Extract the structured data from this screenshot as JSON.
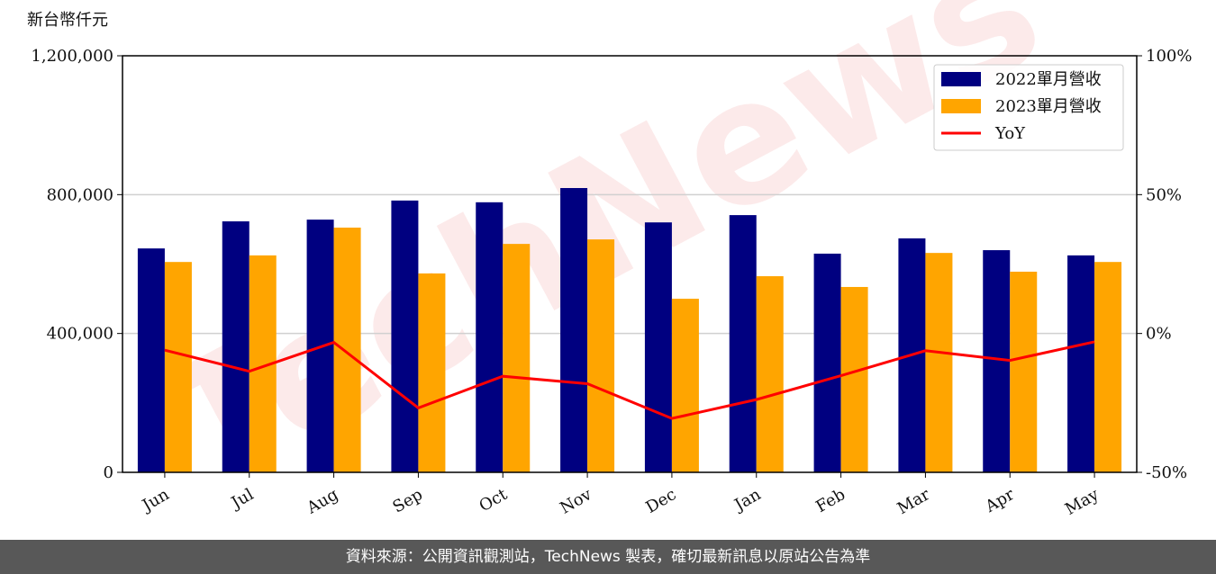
{
  "chart_data": {
    "type": "bar",
    "y_label": "新台幣仟元",
    "watermark": "TechNews",
    "categories": [
      "Jun",
      "Jul",
      "Aug",
      "Sep",
      "Oct",
      "Nov",
      "Dec",
      "Jan",
      "Feb",
      "Mar",
      "Apr",
      "May"
    ],
    "series": [
      {
        "name": "2022單月營收",
        "color": "#000080",
        "values": [
          645000,
          723000,
          728000,
          783000,
          778000,
          819000,
          720000,
          741000,
          630000,
          674000,
          640000,
          625000
        ]
      },
      {
        "name": "2023單月營收",
        "color": "#ffa500",
        "values": [
          606000,
          625000,
          705000,
          573000,
          658000,
          671000,
          500000,
          565000,
          534000,
          632000,
          578000,
          606000
        ]
      },
      {
        "name": "YoY",
        "color": "#ff0000",
        "type": "line",
        "axis": "y2",
        "values": [
          -6.0,
          -13.6,
          -3.2,
          -26.8,
          -15.4,
          -18.1,
          -30.6,
          -23.8,
          -15.2,
          -6.2,
          -9.7,
          -3.0
        ]
      }
    ],
    "ylim": [
      0,
      1200000
    ],
    "yticks": [
      {
        "value": 0,
        "label": "0"
      },
      {
        "value": 400000,
        "label": "400,000"
      },
      {
        "value": 800000,
        "label": "800,000"
      },
      {
        "value": 1200000,
        "label": "1,200,000"
      }
    ],
    "y2lim": [
      -50,
      100
    ],
    "y2ticks": [
      {
        "value": -50,
        "label": "-50%"
      },
      {
        "value": 0,
        "label": "0%"
      },
      {
        "value": 50,
        "label": "50%"
      },
      {
        "value": 100,
        "label": "100%"
      }
    ],
    "grid": true,
    "legend": "upper right"
  },
  "footer": "資料來源：公開資訊觀測站，TechNews 製表，確切最新訊息以原站公告為準"
}
